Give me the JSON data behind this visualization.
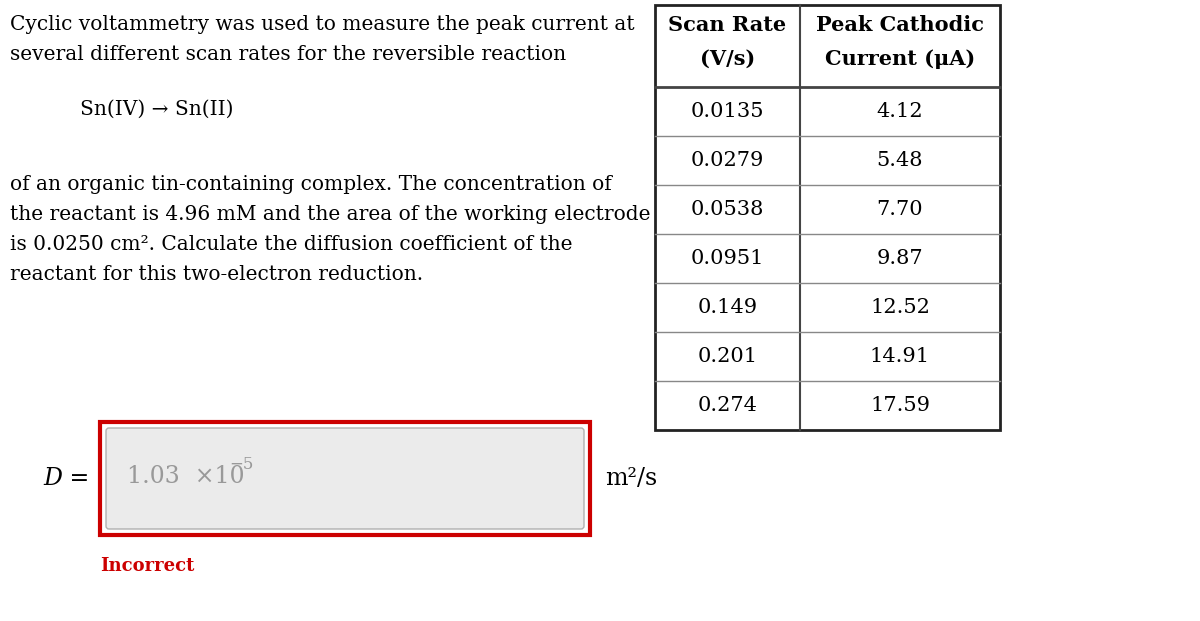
{
  "bg_color": "#ffffff",
  "text_color": "#000000",
  "paragraph_lines": [
    "Cyclic voltammetry was used to measure the peak current at",
    "several different scan rates for the reversible reaction"
  ],
  "reaction": "Sn(IV) → Sn(II)",
  "paragraph_lines2": [
    "of an organic tin-containing complex. The concentration of",
    "the reactant is 4.96 mM and the area of the working electrode",
    "is 0.0250 cm². Calculate the diffusion coefficient of the",
    "reactant for this two-electron reduction."
  ],
  "d_label": "D =",
  "units": "m²/s",
  "incorrect_text": "Incorrect",
  "incorrect_color": "#cc0000",
  "table_header_col1": "Scan Rate",
  "table_header_col1b": "(V/s)",
  "table_header_col2": "Peak Cathodic",
  "table_header_col2b": "Current (μA)",
  "scan_rates": [
    "0.0135",
    "0.0279",
    "0.0538",
    "0.0951",
    "0.149",
    "0.201",
    "0.274"
  ],
  "peak_currents": [
    "4.12",
    "5.48",
    "7.70",
    "9.87",
    "12.52",
    "14.91",
    "17.59"
  ],
  "font_size_body": 14.5,
  "font_size_table": 15,
  "font_size_answer": 17,
  "font_size_d": 17,
  "font_size_incorrect": 13
}
